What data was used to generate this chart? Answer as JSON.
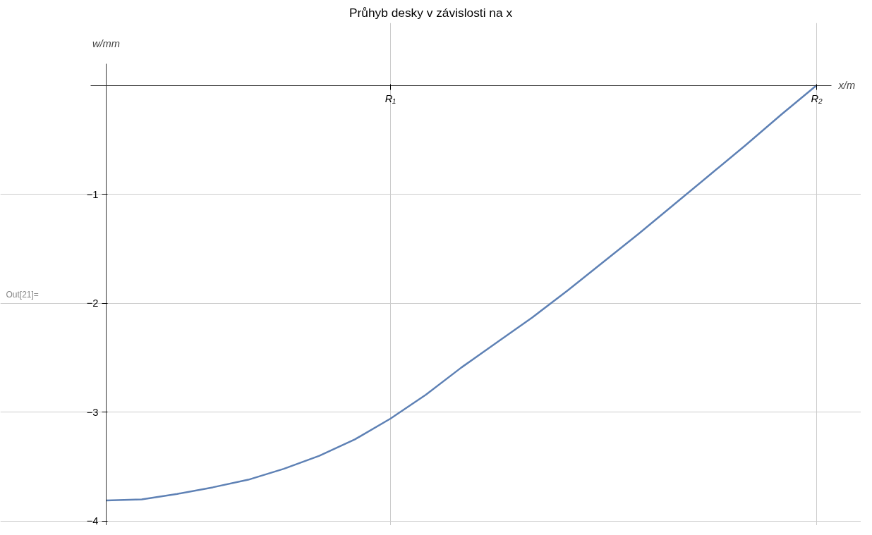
{
  "chart_data": {
    "type": "line",
    "title": "Průhyb desky v závislosti na x",
    "xlabel": "x/m",
    "ylabel": "w/mm",
    "annotations": [
      "Out[21]="
    ],
    "categories": [
      null,
      null,
      null,
      null,
      null,
      null,
      null,
      null,
      "R₁",
      null,
      null,
      null,
      null,
      null,
      null,
      null,
      null,
      null,
      null,
      null,
      "R₂"
    ],
    "series": [
      {
        "color": "#5e81b5",
        "values": [
          -3.81,
          -3.8,
          -3.75,
          -3.69,
          -3.62,
          -3.52,
          -3.4,
          -3.25,
          -3.06,
          -2.84,
          -2.59,
          -2.36,
          -2.13,
          -1.88,
          -1.62,
          -1.36,
          -1.09,
          -0.82,
          -0.55,
          -0.27,
          0
        ]
      }
    ],
    "ylim": [
      -4.04,
      0.2
    ],
    "yticks": [
      -4,
      -3,
      -2,
      -1
    ],
    "grid": true,
    "marker": "none",
    "line_style": "solid"
  }
}
